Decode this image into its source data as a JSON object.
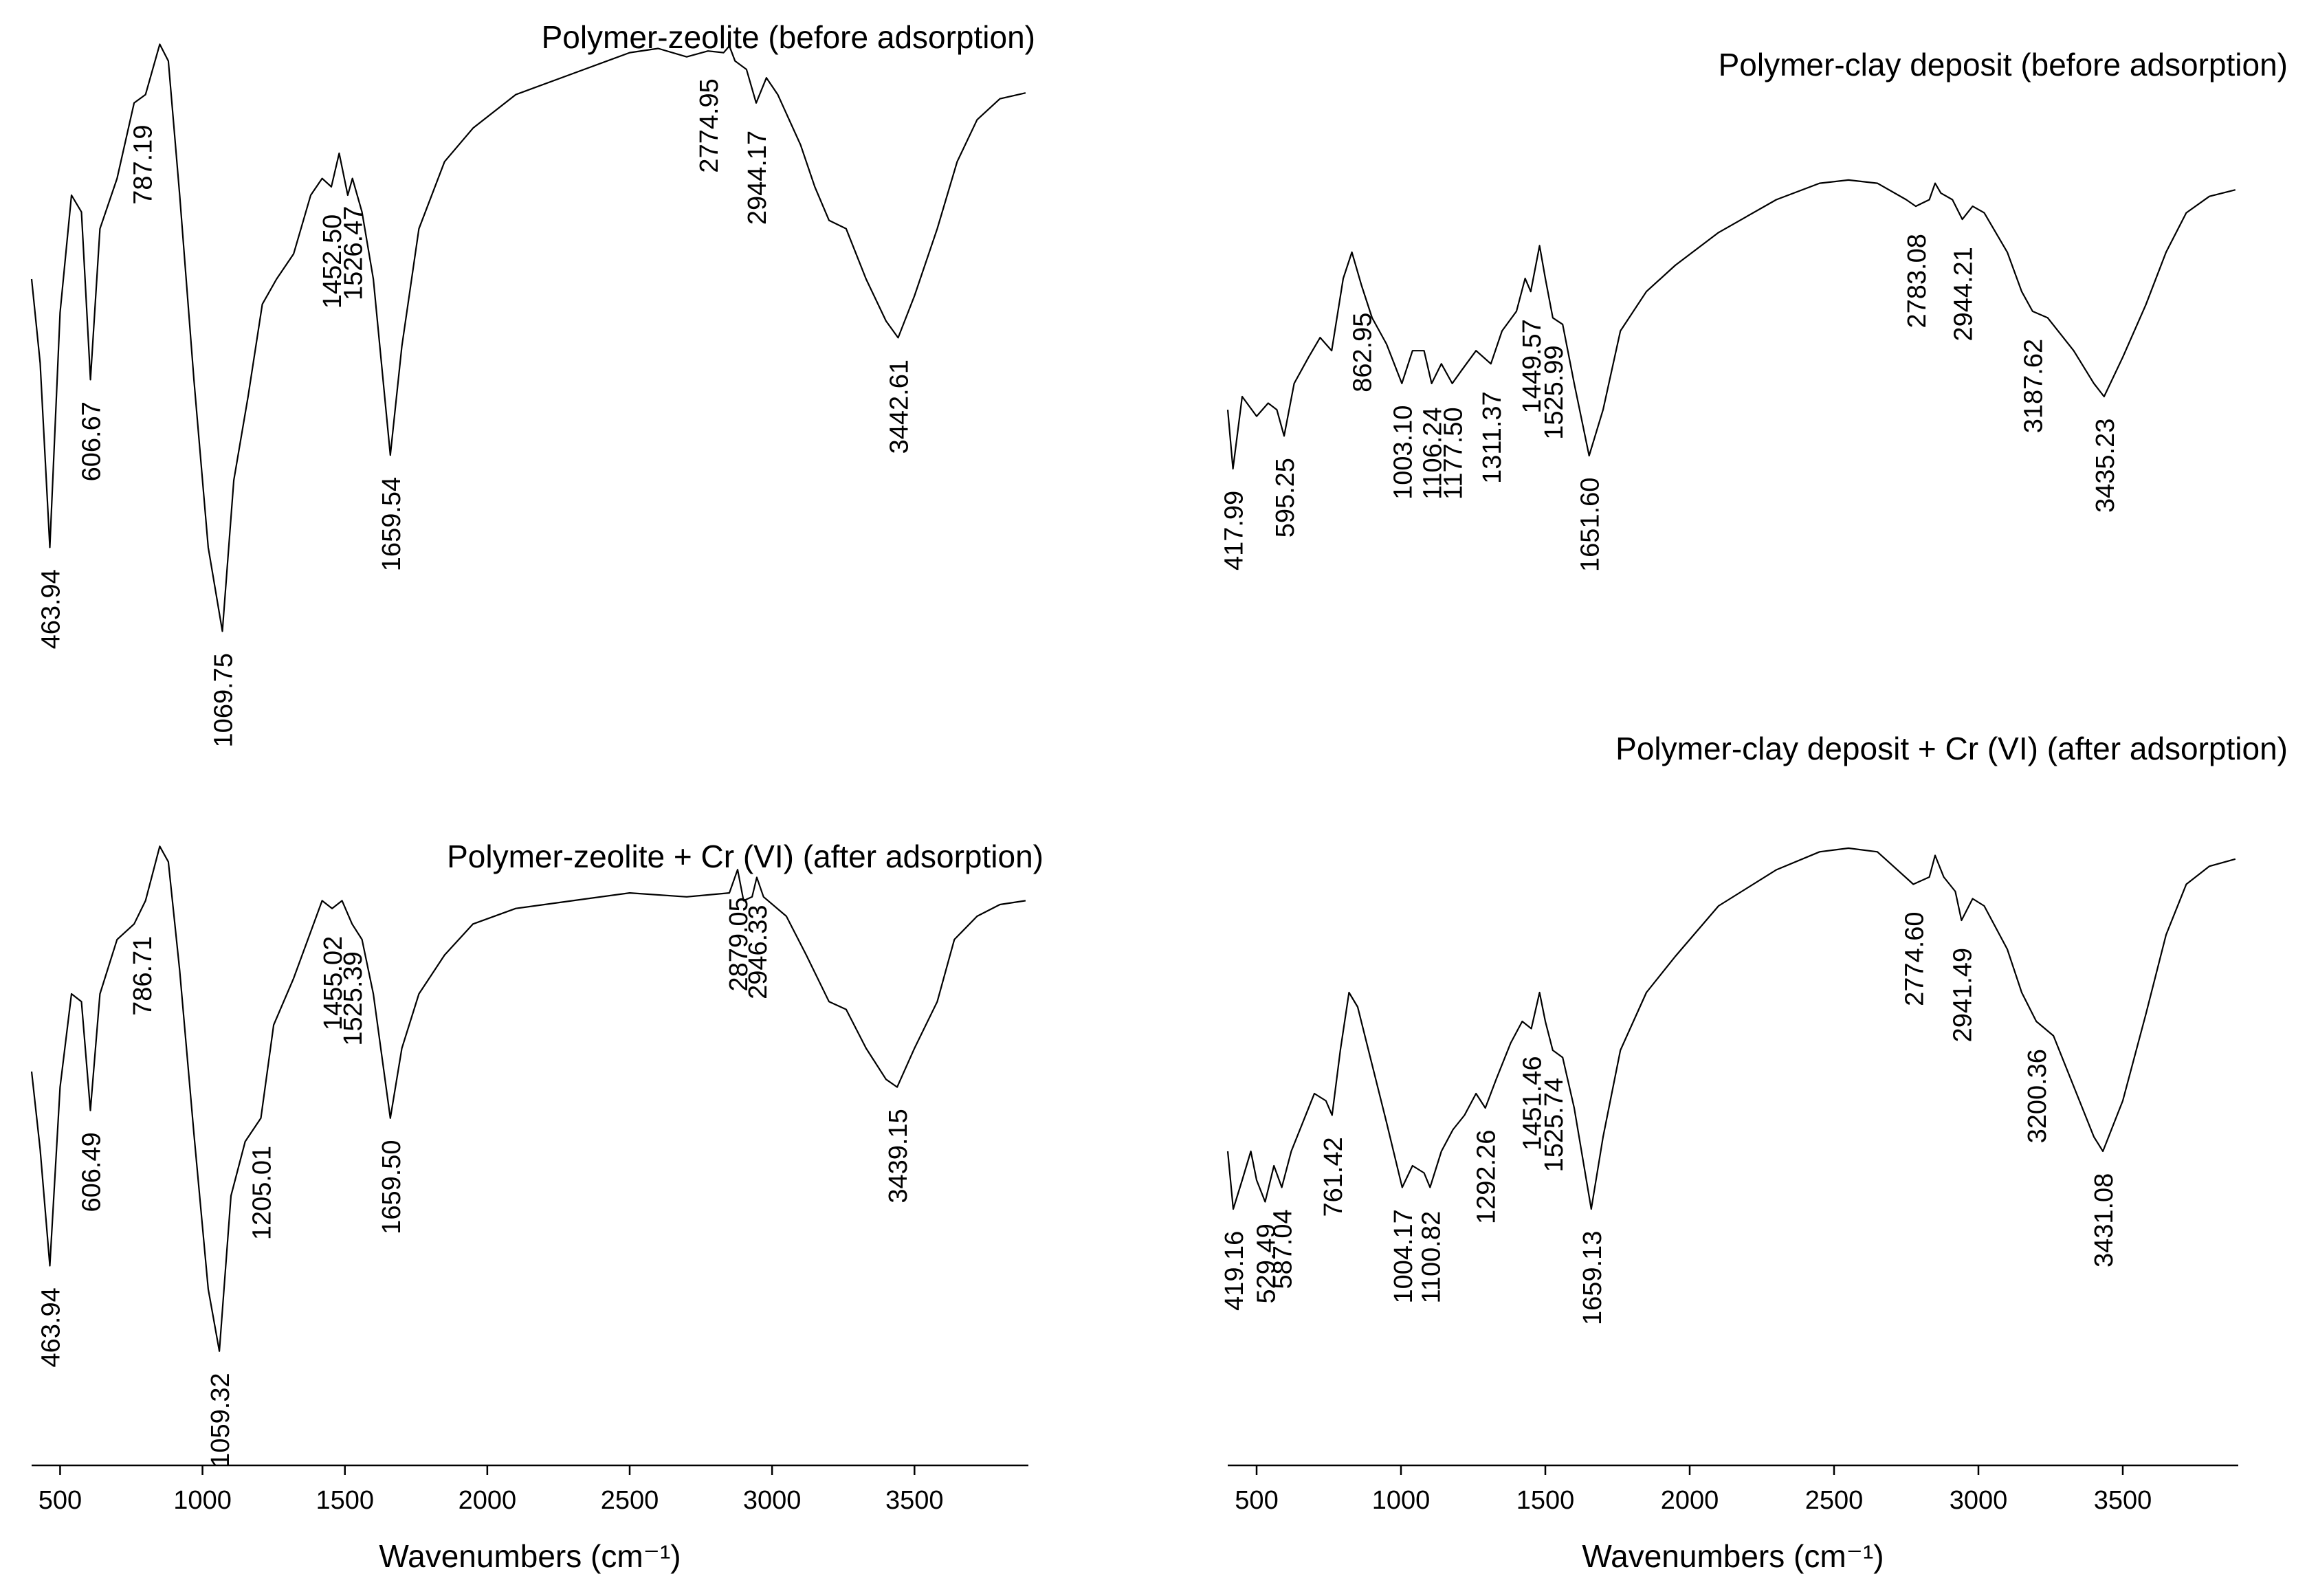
{
  "chart_data": [
    {
      "type": "line",
      "panel": "left",
      "title": "Polymer-zeolite (before adsorption)",
      "peaks": [
        "463.94",
        "606.67",
        "787.19",
        "1069.75",
        "1452.50",
        "1526.47",
        "1659.54",
        "2774.95",
        "2944.17",
        "3442.61"
      ],
      "valley_peaks": [
        463.94,
        606.67,
        1069.75,
        1659.54,
        3442.61
      ],
      "spectrum": [
        [
          400,
          0.3
        ],
        [
          430,
          0.4
        ],
        [
          463.94,
          0.62
        ],
        [
          500,
          0.34
        ],
        [
          540,
          0.2
        ],
        [
          575,
          0.22
        ],
        [
          606.67,
          0.42
        ],
        [
          640,
          0.24
        ],
        [
          700,
          0.18
        ],
        [
          760,
          0.09
        ],
        [
          800,
          0.08
        ],
        [
          850,
          0.02
        ],
        [
          880,
          0.04
        ],
        [
          920,
          0.2
        ],
        [
          970,
          0.42
        ],
        [
          1020,
          0.62
        ],
        [
          1069.75,
          0.72
        ],
        [
          1110,
          0.54
        ],
        [
          1160,
          0.44
        ],
        [
          1210,
          0.33
        ],
        [
          1260,
          0.3
        ],
        [
          1320,
          0.27
        ],
        [
          1380,
          0.2
        ],
        [
          1420,
          0.18
        ],
        [
          1452.5,
          0.19
        ],
        [
          1480,
          0.15
        ],
        [
          1510,
          0.2
        ],
        [
          1526.47,
          0.18
        ],
        [
          1560,
          0.22
        ],
        [
          1600,
          0.3
        ],
        [
          1659.54,
          0.51
        ],
        [
          1700,
          0.38
        ],
        [
          1760,
          0.24
        ],
        [
          1850,
          0.16
        ],
        [
          1950,
          0.12
        ],
        [
          2100,
          0.08
        ],
        [
          2300,
          0.055
        ],
        [
          2500,
          0.03
        ],
        [
          2600,
          0.025
        ],
        [
          2700,
          0.035
        ],
        [
          2774.95,
          0.028
        ],
        [
          2830,
          0.03
        ],
        [
          2850,
          0.022
        ],
        [
          2870,
          0.04
        ],
        [
          2910,
          0.05
        ],
        [
          2944.17,
          0.09
        ],
        [
          2980,
          0.06
        ],
        [
          3020,
          0.08
        ],
        [
          3100,
          0.14
        ],
        [
          3150,
          0.19
        ],
        [
          3200,
          0.23
        ],
        [
          3260,
          0.24
        ],
        [
          3330,
          0.3
        ],
        [
          3400,
          0.35
        ],
        [
          3442.61,
          0.37
        ],
        [
          3500,
          0.32
        ],
        [
          3580,
          0.24
        ],
        [
          3650,
          0.16
        ],
        [
          3720,
          0.11
        ],
        [
          3800,
          0.085
        ],
        [
          3890,
          0.078
        ]
      ]
    },
    {
      "type": "line",
      "panel": "left",
      "title": "Polymer-zeolite + Cr (VI) (after adsorption)",
      "peaks": [
        "463.94",
        "606.49",
        "786.71",
        "1059.32",
        "1205.01",
        "1455.02",
        "1525.39",
        "1659.50",
        "2879.05",
        "2946.33",
        "3439.15"
      ],
      "valley_peaks": [
        463.94,
        606.49,
        1059.32,
        1659.5,
        3439.15
      ],
      "spectrum": [
        [
          400,
          0.3
        ],
        [
          430,
          0.4
        ],
        [
          463.94,
          0.55
        ],
        [
          500,
          0.32
        ],
        [
          540,
          0.2
        ],
        [
          575,
          0.21
        ],
        [
          606.49,
          0.35
        ],
        [
          640,
          0.2
        ],
        [
          700,
          0.13
        ],
        [
          760,
          0.11
        ],
        [
          800,
          0.08
        ],
        [
          850,
          0.01
        ],
        [
          880,
          0.03
        ],
        [
          920,
          0.17
        ],
        [
          970,
          0.38
        ],
        [
          1020,
          0.58
        ],
        [
          1059.32,
          0.66
        ],
        [
          1100,
          0.46
        ],
        [
          1150,
          0.39
        ],
        [
          1205.01,
          0.36
        ],
        [
          1250,
          0.24
        ],
        [
          1320,
          0.18
        ],
        [
          1380,
          0.12
        ],
        [
          1420,
          0.08
        ],
        [
          1455.02,
          0.09
        ],
        [
          1490,
          0.08
        ],
        [
          1525.39,
          0.11
        ],
        [
          1560,
          0.13
        ],
        [
          1600,
          0.2
        ],
        [
          1659.5,
          0.36
        ],
        [
          1700,
          0.27
        ],
        [
          1760,
          0.2
        ],
        [
          1850,
          0.15
        ],
        [
          1950,
          0.11
        ],
        [
          2100,
          0.09
        ],
        [
          2300,
          0.08
        ],
        [
          2500,
          0.07
        ],
        [
          2700,
          0.075
        ],
        [
          2850,
          0.07
        ],
        [
          2879.05,
          0.04
        ],
        [
          2900,
          0.08
        ],
        [
          2930,
          0.075
        ],
        [
          2946.33,
          0.05
        ],
        [
          2970,
          0.075
        ],
        [
          3050,
          0.1
        ],
        [
          3120,
          0.15
        ],
        [
          3200,
          0.21
        ],
        [
          3260,
          0.22
        ],
        [
          3330,
          0.27
        ],
        [
          3400,
          0.31
        ],
        [
          3439.15,
          0.32
        ],
        [
          3500,
          0.27
        ],
        [
          3580,
          0.21
        ],
        [
          3640,
          0.13
        ],
        [
          3720,
          0.1
        ],
        [
          3800,
          0.085
        ],
        [
          3890,
          0.08
        ]
      ]
    },
    {
      "type": "line",
      "panel": "right",
      "title": "Polymer-clay deposit (before adsorption)",
      "peaks": [
        "417.99",
        "595.25",
        "862.95",
        "1003.10",
        "1106.24",
        "1177.50",
        "1311.37",
        "1449.57",
        "1525.99",
        "1651.60",
        "2783.08",
        "2944.21",
        "3187.62",
        "3435.23"
      ],
      "valley_peaks": [
        417.99,
        595.25,
        1003.1,
        1106.24,
        1177.5,
        1651.6,
        3435.23
      ],
      "spectrum": [
        [
          400,
          0.42
        ],
        [
          417.99,
          0.51
        ],
        [
          450,
          0.4
        ],
        [
          500,
          0.43
        ],
        [
          540,
          0.41
        ],
        [
          570,
          0.42
        ],
        [
          595.25,
          0.46
        ],
        [
          630,
          0.38
        ],
        [
          680,
          0.34
        ],
        [
          720,
          0.31
        ],
        [
          760,
          0.33
        ],
        [
          800,
          0.22
        ],
        [
          830,
          0.18
        ],
        [
          862.95,
          0.23
        ],
        [
          900,
          0.28
        ],
        [
          950,
          0.32
        ],
        [
          1003.1,
          0.38
        ],
        [
          1040,
          0.33
        ],
        [
          1080,
          0.33
        ],
        [
          1106.24,
          0.38
        ],
        [
          1140,
          0.35
        ],
        [
          1177.5,
          0.38
        ],
        [
          1210,
          0.36
        ],
        [
          1260,
          0.33
        ],
        [
          1311.37,
          0.35
        ],
        [
          1350,
          0.3
        ],
        [
          1400,
          0.27
        ],
        [
          1430,
          0.22
        ],
        [
          1449.57,
          0.24
        ],
        [
          1480,
          0.17
        ],
        [
          1500,
          0.22
        ],
        [
          1525.99,
          0.28
        ],
        [
          1560,
          0.29
        ],
        [
          1600,
          0.38
        ],
        [
          1651.6,
          0.49
        ],
        [
          1700,
          0.42
        ],
        [
          1760,
          0.3
        ],
        [
          1850,
          0.24
        ],
        [
          1950,
          0.2
        ],
        [
          2100,
          0.15
        ],
        [
          2300,
          0.1
        ],
        [
          2450,
          0.075
        ],
        [
          2550,
          0.07
        ],
        [
          2650,
          0.075
        ],
        [
          2750,
          0.1
        ],
        [
          2783.08,
          0.11
        ],
        [
          2830,
          0.1
        ],
        [
          2850,
          0.075
        ],
        [
          2870,
          0.09
        ],
        [
          2910,
          0.1
        ],
        [
          2944.21,
          0.13
        ],
        [
          2980,
          0.11
        ],
        [
          3020,
          0.12
        ],
        [
          3100,
          0.18
        ],
        [
          3150,
          0.24
        ],
        [
          3187.62,
          0.27
        ],
        [
          3240,
          0.28
        ],
        [
          3330,
          0.33
        ],
        [
          3400,
          0.38
        ],
        [
          3435.23,
          0.4
        ],
        [
          3500,
          0.34
        ],
        [
          3580,
          0.26
        ],
        [
          3650,
          0.18
        ],
        [
          3720,
          0.12
        ],
        [
          3800,
          0.095
        ],
        [
          3890,
          0.085
        ]
      ]
    },
    {
      "type": "line",
      "panel": "right",
      "title": "Polymer-clay deposit + Cr (VI) (after adsorption)",
      "peaks": [
        "419.16",
        "529.49",
        "587.04",
        "761.42",
        "1004.17",
        "1100.82",
        "1292.26",
        "1451.46",
        "1525.74",
        "1659.13",
        "2774.60",
        "2941.49",
        "3200.36",
        "3431.08"
      ],
      "valley_peaks": [
        419.16,
        529.49,
        587.04,
        761.42,
        1004.17,
        1100.82,
        1292.26,
        1659.13,
        3431.08
      ],
      "spectrum": [
        [
          400,
          0.5
        ],
        [
          419.16,
          0.58
        ],
        [
          450,
          0.54
        ],
        [
          480,
          0.5
        ],
        [
          500,
          0.54
        ],
        [
          529.49,
          0.57
        ],
        [
          560,
          0.52
        ],
        [
          587.04,
          0.55
        ],
        [
          620,
          0.5
        ],
        [
          660,
          0.46
        ],
        [
          700,
          0.42
        ],
        [
          740,
          0.43
        ],
        [
          761.42,
          0.45
        ],
        [
          790,
          0.36
        ],
        [
          820,
          0.28
        ],
        [
          850,
          0.3
        ],
        [
          900,
          0.38
        ],
        [
          950,
          0.46
        ],
        [
          1004.17,
          0.55
        ],
        [
          1040,
          0.52
        ],
        [
          1080,
          0.53
        ],
        [
          1100.82,
          0.55
        ],
        [
          1140,
          0.5
        ],
        [
          1180,
          0.47
        ],
        [
          1220,
          0.45
        ],
        [
          1260,
          0.42
        ],
        [
          1292.26,
          0.44
        ],
        [
          1330,
          0.4
        ],
        [
          1380,
          0.35
        ],
        [
          1420,
          0.32
        ],
        [
          1451.46,
          0.33
        ],
        [
          1480,
          0.28
        ],
        [
          1500,
          0.32
        ],
        [
          1525.74,
          0.36
        ],
        [
          1560,
          0.37
        ],
        [
          1600,
          0.44
        ],
        [
          1659.13,
          0.58
        ],
        [
          1700,
          0.48
        ],
        [
          1760,
          0.36
        ],
        [
          1850,
          0.28
        ],
        [
          1950,
          0.23
        ],
        [
          2100,
          0.16
        ],
        [
          2300,
          0.11
        ],
        [
          2450,
          0.085
        ],
        [
          2550,
          0.08
        ],
        [
          2650,
          0.085
        ],
        [
          2774.6,
          0.13
        ],
        [
          2830,
          0.12
        ],
        [
          2850,
          0.09
        ],
        [
          2880,
          0.12
        ],
        [
          2920,
          0.14
        ],
        [
          2941.49,
          0.18
        ],
        [
          2980,
          0.15
        ],
        [
          3020,
          0.16
        ],
        [
          3100,
          0.22
        ],
        [
          3150,
          0.28
        ],
        [
          3200.36,
          0.32
        ],
        [
          3260,
          0.34
        ],
        [
          3330,
          0.41
        ],
        [
          3400,
          0.48
        ],
        [
          3431.08,
          0.5
        ],
        [
          3500,
          0.43
        ],
        [
          3580,
          0.31
        ],
        [
          3650,
          0.2
        ],
        [
          3720,
          0.13
        ],
        [
          3800,
          0.105
        ],
        [
          3890,
          0.095
        ]
      ]
    }
  ],
  "axes": [
    {
      "panel": "left",
      "xlabel": "Wavenumbers (cm⁻¹)",
      "xlim": [
        400,
        3900
      ],
      "xticks": [
        "500",
        "1000",
        "1500",
        "2000",
        "2500",
        "3000",
        "3500"
      ]
    },
    {
      "panel": "right",
      "xlabel": "Wavenumbers (cm⁻¹)",
      "xlim": [
        400,
        3900
      ],
      "xticks": [
        "500",
        "1000",
        "1500",
        "2000",
        "2500",
        "3000",
        "3500"
      ]
    }
  ]
}
